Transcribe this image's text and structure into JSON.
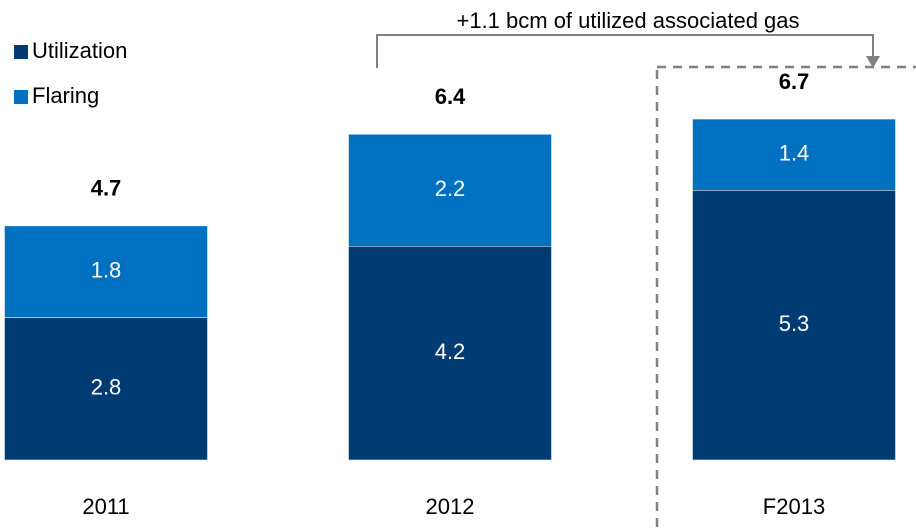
{
  "chart_data": {
    "type": "stacked_bar",
    "categories": [
      "2011",
      "2012",
      "F2013"
    ],
    "series": [
      {
        "name": "Utilization",
        "color": "#003b73",
        "values": [
          2.8,
          4.2,
          5.3
        ]
      },
      {
        "name": "Flaring",
        "color": "#0070c0",
        "values": [
          1.8,
          2.2,
          1.4
        ]
      }
    ],
    "totals": [
      4.7,
      6.4,
      6.7
    ],
    "annotation": "+1.1 bcm of utilized associated gas",
    "ylim": [
      0,
      9
    ],
    "legend": "top-left"
  }
}
